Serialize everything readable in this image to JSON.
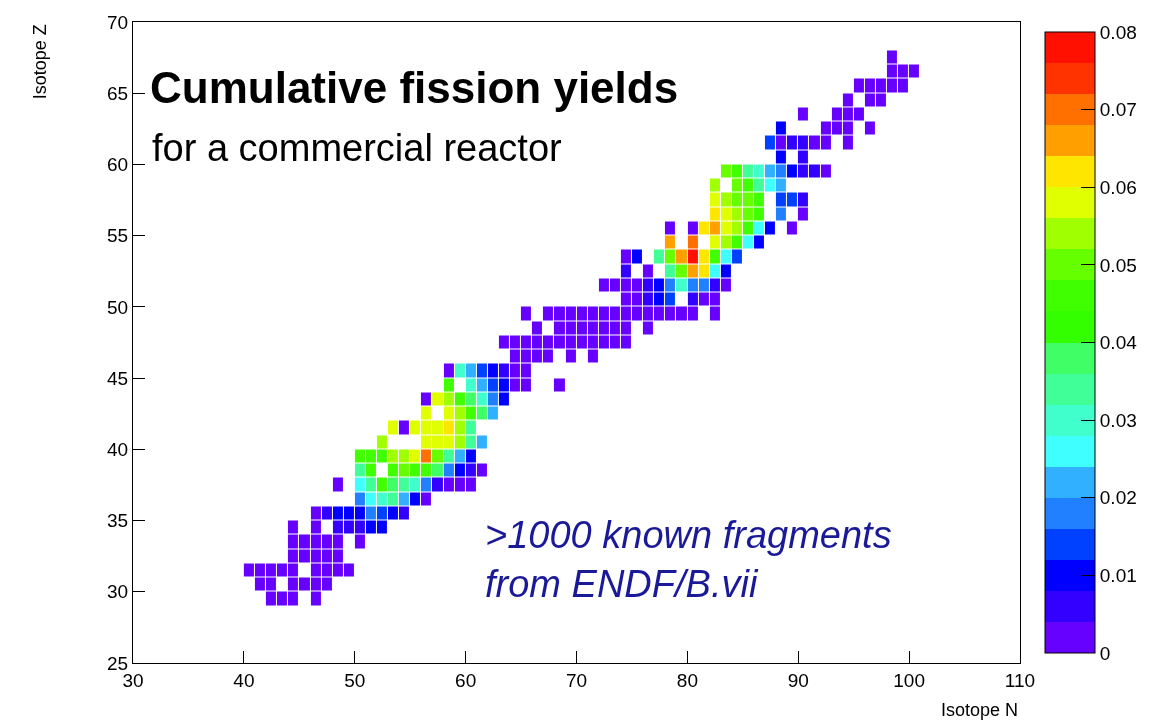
{
  "chart_data": {
    "type": "heatmap",
    "title": "Cumulative fission yields",
    "subtitle": "for a commercial reactor",
    "xlabel": "Isotope N",
    "ylabel": "Isotope Z",
    "annotations": [
      ">1000 known fragments\nfrom ENDF/B.vii"
    ],
    "xlim": [
      30,
      110
    ],
    "xticks": [
      30,
      40,
      50,
      60,
      70,
      80,
      90,
      100,
      110
    ],
    "ylim": [
      25,
      70
    ],
    "yticks": [
      25,
      30,
      35,
      40,
      45,
      50,
      55,
      60,
      65,
      70
    ],
    "clim": [
      0,
      0.08
    ],
    "cticks": [
      0,
      0.01,
      0.02,
      0.03,
      0.04,
      0.05,
      0.06,
      0.07,
      0.08
    ],
    "colors": [
      "#6600ff",
      "#3300ff",
      "#0000ff",
      "#0040ff",
      "#2080ff",
      "#30b0ff",
      "#40ffff",
      "#40ffcc",
      "#40ff99",
      "#40ff66",
      "#33ff00",
      "#40ff00",
      "#66ff00",
      "#a0ff00",
      "#e0ff00",
      "#ffe600",
      "#ffa000",
      "#ff7000",
      "#ff3300",
      "#ff1000"
    ],
    "grid": false,
    "x": [
      40.5,
      41.5,
      42.5,
      43.5,
      44.5,
      45.5,
      46.5,
      47.5,
      48.5,
      49.5,
      50.5,
      51.5,
      52.5,
      53.5,
      54.5,
      55.5,
      56.5,
      57.5,
      58.5,
      59.5,
      60.5,
      61.5,
      62.5,
      63.5,
      64.5,
      65.5,
      66.5,
      67.5,
      68.5,
      69.5,
      70.5,
      71.5,
      72.5,
      73.5,
      74.5,
      75.5,
      76.5,
      77.5,
      78.5,
      79.5,
      80.5,
      81.5,
      82.5,
      83.5,
      84.5,
      85.5,
      86.5,
      87.5,
      88.5,
      89.5,
      90.5,
      91.5,
      92.5,
      93.5,
      94.5,
      95.5,
      96.5,
      97.5,
      98.5,
      99.5,
      100.5
    ],
    "y": [
      67.5,
      66.5,
      65.5,
      64.5,
      63.5,
      62.5,
      61.5,
      60.5,
      59.5,
      58.5,
      57.5,
      56.5,
      55.5,
      54.5,
      53.5,
      52.5,
      51.5,
      50.5,
      49.5,
      48.5,
      47.5,
      46.5,
      45.5,
      44.5,
      43.5,
      42.5,
      41.5,
      40.5,
      39.5,
      38.5,
      37.5,
      36.5,
      35.5,
      34.5,
      33.5,
      32.5,
      31.5,
      30.5,
      29.5
    ],
    "cells": [
      [
        null,
        null,
        null,
        null,
        null,
        null,
        null,
        null,
        null,
        null,
        null,
        null,
        null,
        null,
        null,
        null,
        null,
        null,
        null,
        null,
        null,
        null,
        null,
        null,
        null,
        null,
        null,
        null,
        null,
        null,
        null,
        null,
        null,
        null,
        null,
        null,
        null,
        null,
        null,
        null,
        null,
        null,
        null,
        null,
        null,
        null,
        null,
        null,
        null,
        null,
        null,
        null,
        null,
        null,
        null,
        null,
        null,
        null,
        0.002,
        null,
        null
      ],
      [
        null,
        null,
        null,
        null,
        null,
        null,
        null,
        null,
        null,
        null,
        null,
        null,
        null,
        null,
        null,
        null,
        null,
        null,
        null,
        null,
        null,
        null,
        null,
        null,
        null,
        null,
        null,
        null,
        null,
        null,
        null,
        null,
        null,
        null,
        null,
        null,
        null,
        null,
        null,
        null,
        null,
        null,
        null,
        null,
        null,
        null,
        null,
        null,
        null,
        null,
        null,
        null,
        null,
        null,
        null,
        null,
        null,
        null,
        0.002,
        0.002,
        0.002
      ],
      [
        null,
        null,
        null,
        null,
        null,
        null,
        null,
        null,
        null,
        null,
        null,
        null,
        null,
        null,
        null,
        null,
        null,
        null,
        null,
        null,
        null,
        null,
        null,
        null,
        null,
        null,
        null,
        null,
        null,
        null,
        null,
        null,
        null,
        null,
        null,
        null,
        null,
        null,
        null,
        null,
        null,
        null,
        null,
        null,
        null,
        null,
        null,
        null,
        null,
        null,
        null,
        null,
        null,
        null,
        null,
        0.002,
        0.002,
        0.002,
        0.002,
        0.002,
        null
      ],
      [
        null,
        null,
        null,
        null,
        null,
        null,
        null,
        null,
        null,
        null,
        null,
        null,
        null,
        null,
        null,
        null,
        null,
        null,
        null,
        null,
        null,
        null,
        null,
        null,
        null,
        null,
        null,
        null,
        null,
        null,
        null,
        null,
        null,
        null,
        null,
        null,
        null,
        null,
        null,
        null,
        null,
        null,
        null,
        null,
        null,
        null,
        null,
        null,
        null,
        null,
        null,
        null,
        null,
        null,
        0.002,
        null,
        0.002,
        0.002,
        null,
        null,
        null
      ],
      [
        null,
        null,
        null,
        null,
        null,
        null,
        null,
        null,
        null,
        null,
        null,
        null,
        null,
        null,
        null,
        null,
        null,
        null,
        null,
        null,
        null,
        null,
        null,
        null,
        null,
        null,
        null,
        null,
        null,
        null,
        null,
        null,
        null,
        null,
        null,
        null,
        null,
        null,
        null,
        null,
        null,
        null,
        null,
        null,
        null,
        null,
        null,
        null,
        null,
        null,
        0.002,
        null,
        null,
        0.002,
        0.002,
        0.002,
        null,
        null,
        null,
        null,
        null
      ],
      [
        null,
        null,
        null,
        null,
        null,
        null,
        null,
        null,
        null,
        null,
        null,
        null,
        null,
        null,
        null,
        null,
        null,
        null,
        null,
        null,
        null,
        null,
        null,
        null,
        null,
        null,
        null,
        null,
        null,
        null,
        null,
        null,
        null,
        null,
        null,
        null,
        null,
        null,
        null,
        null,
        null,
        null,
        null,
        null,
        null,
        null,
        null,
        null,
        0.01,
        null,
        null,
        null,
        0.002,
        0.002,
        0.002,
        null,
        0.002,
        null,
        null,
        null,
        null
      ],
      [
        null,
        null,
        null,
        null,
        null,
        null,
        null,
        null,
        null,
        null,
        null,
        null,
        null,
        null,
        null,
        null,
        null,
        null,
        null,
        null,
        null,
        null,
        null,
        null,
        null,
        null,
        null,
        null,
        null,
        null,
        null,
        null,
        null,
        null,
        null,
        null,
        null,
        null,
        null,
        null,
        null,
        null,
        null,
        null,
        null,
        null,
        null,
        0.014,
        0.002,
        0.006,
        0.006,
        0.002,
        0.002,
        null,
        0.002,
        null,
        null,
        null,
        null,
        null,
        null
      ],
      [
        null,
        null,
        null,
        null,
        null,
        null,
        null,
        null,
        null,
        null,
        null,
        null,
        null,
        null,
        null,
        null,
        null,
        null,
        null,
        null,
        null,
        null,
        null,
        null,
        null,
        null,
        null,
        null,
        null,
        null,
        null,
        null,
        null,
        null,
        null,
        null,
        null,
        null,
        null,
        null,
        null,
        null,
        null,
        null,
        null,
        null,
        null,
        null,
        0.01,
        null,
        0.006,
        null,
        null,
        null,
        null,
        null,
        null,
        null,
        null,
        null,
        null
      ],
      [
        null,
        null,
        null,
        null,
        null,
        null,
        null,
        null,
        null,
        null,
        null,
        null,
        null,
        null,
        null,
        null,
        null,
        null,
        null,
        null,
        null,
        null,
        null,
        null,
        null,
        null,
        null,
        null,
        null,
        null,
        null,
        null,
        null,
        null,
        null,
        null,
        null,
        null,
        null,
        null,
        null,
        null,
        null,
        0.05,
        0.046,
        0.034,
        0.03,
        0.022,
        0.018,
        0.01,
        0.006,
        0.006,
        0.002,
        null,
        null,
        null,
        null,
        null,
        null,
        null,
        null
      ],
      [
        null,
        null,
        null,
        null,
        null,
        null,
        null,
        null,
        null,
        null,
        null,
        null,
        null,
        null,
        null,
        null,
        null,
        null,
        null,
        null,
        null,
        null,
        null,
        null,
        null,
        null,
        null,
        null,
        null,
        null,
        null,
        null,
        null,
        null,
        null,
        null,
        null,
        null,
        null,
        null,
        null,
        null,
        0.054,
        null,
        0.05,
        0.046,
        0.034,
        0.026,
        0.022,
        null,
        null,
        null,
        null,
        null,
        null,
        null,
        null,
        null,
        null,
        null,
        null
      ],
      [
        null,
        null,
        null,
        null,
        null,
        null,
        null,
        null,
        null,
        null,
        null,
        null,
        null,
        null,
        null,
        null,
        null,
        null,
        null,
        null,
        null,
        null,
        null,
        null,
        null,
        null,
        null,
        null,
        null,
        null,
        null,
        null,
        null,
        null,
        null,
        null,
        null,
        null,
        null,
        null,
        null,
        null,
        0.058,
        0.054,
        0.05,
        0.05,
        0.046,
        null,
        0.014,
        0.014,
        0.006,
        null,
        null,
        null,
        null,
        null,
        null,
        null,
        null,
        null,
        null
      ],
      [
        null,
        null,
        null,
        null,
        null,
        null,
        null,
        null,
        null,
        null,
        null,
        null,
        null,
        null,
        null,
        null,
        null,
        null,
        null,
        null,
        null,
        null,
        null,
        null,
        null,
        null,
        null,
        null,
        null,
        null,
        null,
        null,
        null,
        null,
        null,
        null,
        null,
        null,
        null,
        null,
        null,
        null,
        0.062,
        0.058,
        0.054,
        0.05,
        0.046,
        null,
        0.018,
        null,
        0.002,
        null,
        null,
        null,
        null,
        null,
        null,
        null,
        null,
        null,
        null
      ],
      [
        null,
        null,
        null,
        null,
        null,
        null,
        null,
        null,
        null,
        null,
        null,
        null,
        null,
        null,
        null,
        null,
        null,
        null,
        null,
        null,
        null,
        null,
        null,
        null,
        null,
        null,
        null,
        null,
        null,
        null,
        null,
        null,
        null,
        null,
        null,
        null,
        null,
        null,
        0.002,
        null,
        0.002,
        0.062,
        0.066,
        0.058,
        0.054,
        0.046,
        0.026,
        0.01,
        null,
        0.002,
        null,
        null,
        null,
        null,
        null,
        null,
        null,
        null,
        null,
        null,
        null
      ],
      [
        null,
        null,
        null,
        null,
        null,
        null,
        null,
        null,
        null,
        null,
        null,
        null,
        null,
        null,
        null,
        null,
        null,
        null,
        null,
        null,
        null,
        null,
        null,
        null,
        null,
        null,
        null,
        null,
        null,
        null,
        null,
        null,
        null,
        null,
        null,
        null,
        null,
        null,
        0.066,
        null,
        0.07,
        null,
        0.058,
        0.054,
        0.046,
        0.026,
        0.01,
        null,
        null,
        null,
        null,
        null,
        null,
        null,
        null,
        null,
        null,
        null,
        null,
        null,
        null
      ],
      [
        null,
        null,
        null,
        null,
        null,
        null,
        null,
        null,
        null,
        null,
        null,
        null,
        null,
        null,
        null,
        null,
        null,
        null,
        null,
        null,
        null,
        null,
        null,
        null,
        null,
        null,
        null,
        null,
        null,
        null,
        null,
        null,
        null,
        null,
        0.002,
        0.01,
        null,
        0.034,
        0.05,
        0.066,
        0.078,
        0.062,
        0.046,
        0.026,
        0.014,
        null,
        null,
        null,
        null,
        null,
        null,
        null,
        null,
        null,
        null,
        null,
        null,
        null,
        null,
        null,
        null
      ],
      [
        null,
        null,
        null,
        null,
        null,
        null,
        null,
        null,
        null,
        null,
        null,
        null,
        null,
        null,
        null,
        null,
        null,
        null,
        null,
        null,
        null,
        null,
        null,
        null,
        null,
        null,
        null,
        null,
        null,
        null,
        null,
        null,
        null,
        null,
        0.006,
        null,
        0.002,
        null,
        0.034,
        0.05,
        0.066,
        0.062,
        0.026,
        0.01,
        null,
        null,
        null,
        null,
        null,
        null,
        null,
        null,
        null,
        null,
        null,
        null,
        null,
        null,
        null,
        null,
        null
      ],
      [
        null,
        null,
        null,
        null,
        null,
        null,
        null,
        null,
        null,
        null,
        null,
        null,
        null,
        null,
        null,
        null,
        null,
        null,
        null,
        null,
        null,
        null,
        null,
        null,
        null,
        null,
        null,
        null,
        null,
        null,
        null,
        null,
        0.002,
        0.002,
        0.002,
        0.002,
        0.006,
        0.01,
        0.018,
        0.03,
        0.018,
        0.018,
        0.006,
        0.002,
        null,
        null,
        null,
        null,
        null,
        null,
        null,
        null,
        null,
        null,
        null,
        null,
        null,
        null,
        null,
        null,
        null
      ],
      [
        null,
        null,
        null,
        null,
        null,
        null,
        null,
        null,
        null,
        null,
        null,
        null,
        null,
        null,
        null,
        null,
        null,
        null,
        null,
        null,
        null,
        null,
        null,
        null,
        null,
        null,
        null,
        null,
        null,
        null,
        null,
        null,
        null,
        null,
        0.002,
        0.002,
        0.006,
        0.01,
        0.014,
        null,
        0.006,
        0.002,
        0.002,
        null,
        null,
        null,
        null,
        null,
        null,
        null,
        null,
        null,
        null,
        null,
        null,
        null,
        null,
        null,
        null,
        null,
        null
      ],
      [
        null,
        null,
        null,
        null,
        null,
        null,
        null,
        null,
        null,
        null,
        null,
        null,
        null,
        null,
        null,
        null,
        null,
        null,
        null,
        null,
        null,
        null,
        null,
        null,
        null,
        0.002,
        null,
        0.002,
        0.002,
        0.002,
        0.002,
        0.002,
        0.002,
        0.002,
        0.002,
        0.002,
        0.002,
        0.002,
        0.002,
        0.002,
        0.002,
        null,
        0.002,
        null,
        null,
        null,
        null,
        null,
        null,
        null,
        null,
        null,
        null,
        null,
        null,
        null,
        null,
        null,
        null,
        null,
        null
      ],
      [
        null,
        null,
        null,
        null,
        null,
        null,
        null,
        null,
        null,
        null,
        null,
        null,
        null,
        null,
        null,
        null,
        null,
        null,
        null,
        null,
        null,
        null,
        null,
        null,
        null,
        null,
        0.002,
        null,
        0.002,
        0.002,
        0.002,
        0.002,
        0.002,
        0.002,
        0.002,
        null,
        0.002,
        null,
        null,
        null,
        null,
        null,
        null,
        null,
        null,
        null,
        null,
        null,
        null,
        null,
        null,
        null,
        null,
        null,
        null,
        null,
        null,
        null,
        null,
        null,
        null
      ],
      [
        null,
        null,
        null,
        null,
        null,
        null,
        null,
        null,
        null,
        null,
        null,
        null,
        null,
        null,
        null,
        null,
        null,
        null,
        null,
        null,
        null,
        null,
        null,
        0.002,
        0.002,
        0.002,
        0.002,
        0.002,
        0.002,
        0.002,
        0.002,
        0.002,
        0.002,
        0.002,
        0.002,
        null,
        null,
        null,
        null,
        null,
        null,
        null,
        null,
        null,
        null,
        null,
        null,
        null,
        null,
        null,
        null,
        null,
        null,
        null,
        null,
        null,
        null,
        null,
        null,
        null,
        null
      ],
      [
        null,
        null,
        null,
        null,
        null,
        null,
        null,
        null,
        null,
        null,
        null,
        null,
        null,
        null,
        null,
        null,
        null,
        null,
        null,
        null,
        null,
        null,
        null,
        null,
        0.002,
        0.002,
        0.002,
        0.002,
        null,
        0.002,
        null,
        0.002,
        null,
        null,
        null,
        null,
        null,
        null,
        null,
        null,
        null,
        null,
        null,
        null,
        null,
        null,
        null,
        null,
        null,
        null,
        null,
        null,
        null,
        null,
        null,
        null,
        null,
        null,
        null,
        null,
        null
      ],
      [
        null,
        null,
        null,
        null,
        null,
        null,
        null,
        null,
        null,
        null,
        null,
        null,
        null,
        null,
        null,
        null,
        null,
        null,
        0.002,
        0.03,
        0.022,
        0.014,
        0.01,
        0.006,
        0.002,
        0.002,
        null,
        null,
        null,
        null,
        null,
        null,
        null,
        null,
        null,
        null,
        null,
        null,
        null,
        null,
        null,
        null,
        null,
        null,
        null,
        null,
        null,
        null,
        null,
        null,
        null,
        null,
        null,
        null,
        null,
        null,
        null,
        null,
        null,
        null,
        null
      ],
      [
        null,
        null,
        null,
        null,
        null,
        null,
        null,
        null,
        null,
        null,
        null,
        null,
        null,
        null,
        null,
        null,
        null,
        null,
        0.046,
        null,
        0.03,
        0.022,
        0.014,
        0.01,
        0.002,
        0.002,
        null,
        null,
        0.002,
        null,
        null,
        null,
        null,
        null,
        null,
        null,
        null,
        null,
        null,
        null,
        null,
        null,
        null,
        null,
        null,
        null,
        null,
        null,
        null,
        null,
        null,
        null,
        null,
        null,
        null,
        null,
        null,
        null,
        null,
        null,
        null
      ],
      [
        null,
        null,
        null,
        null,
        null,
        null,
        null,
        null,
        null,
        null,
        null,
        null,
        null,
        null,
        null,
        null,
        0.002,
        0.058,
        0.054,
        0.046,
        0.038,
        0.03,
        0.018,
        0.01,
        null,
        null,
        null,
        null,
        null,
        null,
        null,
        null,
        null,
        null,
        null,
        null,
        null,
        null,
        null,
        null,
        null,
        null,
        null,
        null,
        null,
        null,
        null,
        null,
        null,
        null,
        null,
        null,
        null,
        null,
        null,
        null,
        null,
        null,
        null,
        null,
        null
      ],
      [
        null,
        null,
        null,
        null,
        null,
        null,
        null,
        null,
        null,
        null,
        null,
        null,
        null,
        null,
        null,
        null,
        0.058,
        null,
        0.058,
        0.054,
        0.046,
        0.038,
        0.022,
        null,
        null,
        null,
        null,
        null,
        null,
        null,
        null,
        null,
        null,
        null,
        null,
        null,
        null,
        null,
        null,
        null,
        null,
        null,
        null,
        null,
        null,
        null,
        null,
        null,
        null,
        null,
        null,
        null,
        null,
        null,
        null,
        null,
        null,
        null,
        null,
        null,
        null
      ],
      [
        null,
        null,
        null,
        null,
        null,
        null,
        null,
        null,
        null,
        null,
        null,
        null,
        null,
        0.058,
        0.002,
        0.058,
        0.058,
        0.058,
        0.062,
        0.054,
        0.034,
        null,
        null,
        null,
        null,
        null,
        null,
        null,
        null,
        null,
        null,
        null,
        null,
        null,
        null,
        null,
        null,
        null,
        null,
        null,
        null,
        null,
        null,
        null,
        null,
        null,
        null,
        null,
        null,
        null,
        null,
        null,
        null,
        null,
        null,
        null,
        null,
        null,
        null,
        null,
        null
      ],
      [
        null,
        null,
        null,
        null,
        null,
        null,
        null,
        null,
        null,
        null,
        null,
        null,
        0.054,
        null,
        null,
        null,
        0.058,
        0.058,
        0.058,
        0.054,
        0.034,
        0.022,
        null,
        null,
        null,
        null,
        null,
        null,
        null,
        null,
        null,
        null,
        null,
        null,
        null,
        null,
        null,
        null,
        null,
        null,
        null,
        null,
        null,
        null,
        null,
        null,
        null,
        null,
        null,
        null,
        null,
        null,
        null,
        null,
        null,
        null,
        null,
        null,
        null,
        null,
        null
      ],
      [
        null,
        null,
        null,
        null,
        null,
        null,
        null,
        null,
        null,
        null,
        0.046,
        0.046,
        0.046,
        0.054,
        0.054,
        0.058,
        0.07,
        0.05,
        0.034,
        0.022,
        0.01,
        null,
        null,
        null,
        null,
        null,
        null,
        null,
        null,
        null,
        null,
        null,
        null,
        null,
        null,
        null,
        null,
        null,
        null,
        null,
        null,
        null,
        null,
        null,
        null,
        null,
        null,
        null,
        null,
        null,
        null,
        null,
        null,
        null,
        null,
        null,
        null,
        null,
        null,
        null,
        null
      ],
      [
        null,
        null,
        null,
        null,
        null,
        null,
        null,
        null,
        null,
        null,
        0.034,
        0.046,
        null,
        0.046,
        0.05,
        0.046,
        0.046,
        0.038,
        0.018,
        0.01,
        0.006,
        0.002,
        null,
        null,
        null,
        null,
        null,
        null,
        null,
        null,
        null,
        null,
        null,
        null,
        null,
        null,
        null,
        null,
        null,
        null,
        null,
        null,
        null,
        null,
        null,
        null,
        null,
        null,
        null,
        null,
        null,
        null,
        null,
        null,
        null,
        null,
        null,
        null,
        null,
        null,
        null
      ],
      [
        null,
        null,
        null,
        null,
        null,
        null,
        null,
        null,
        0.002,
        null,
        0.026,
        0.034,
        0.046,
        0.038,
        0.034,
        0.03,
        0.018,
        0.006,
        0.002,
        0.002,
        0.002,
        null,
        null,
        null,
        null,
        null,
        null,
        null,
        null,
        null,
        null,
        null,
        null,
        null,
        null,
        null,
        null,
        null,
        null,
        null,
        null,
        null,
        null,
        null,
        null,
        null,
        null,
        null,
        null,
        null,
        null,
        null,
        null,
        null,
        null,
        null,
        null,
        null,
        null,
        null,
        null
      ],
      [
        null,
        null,
        null,
        null,
        null,
        null,
        null,
        null,
        null,
        null,
        0.018,
        0.026,
        0.03,
        0.034,
        0.022,
        0.01,
        0.002,
        null,
        null,
        null,
        null,
        null,
        null,
        null,
        null,
        null,
        null,
        null,
        null,
        null,
        null,
        null,
        null,
        null,
        null,
        null,
        null,
        null,
        null,
        null,
        null,
        null,
        null,
        null,
        null,
        null,
        null,
        null,
        null,
        null,
        null,
        null,
        null,
        null,
        null,
        null,
        null,
        null,
        null,
        null,
        null
      ],
      [
        null,
        null,
        null,
        null,
        null,
        null,
        0.002,
        0.006,
        0.01,
        0.01,
        0.01,
        0.018,
        0.014,
        0.01,
        0.006,
        null,
        null,
        null,
        null,
        null,
        null,
        null,
        null,
        null,
        null,
        null,
        null,
        null,
        null,
        null,
        null,
        null,
        null,
        null,
        null,
        null,
        null,
        null,
        null,
        null,
        null,
        null,
        null,
        null,
        null,
        null,
        null,
        null,
        null,
        null,
        null,
        null,
        null,
        null,
        null,
        null,
        null,
        null,
        null,
        null,
        null
      ],
      [
        null,
        null,
        null,
        null,
        0.002,
        null,
        0.002,
        null,
        0.006,
        0.006,
        0.006,
        0.01,
        0.01,
        null,
        null,
        null,
        null,
        null,
        null,
        null,
        null,
        null,
        null,
        null,
        null,
        null,
        null,
        null,
        null,
        null,
        null,
        null,
        null,
        null,
        null,
        null,
        null,
        null,
        null,
        null,
        null,
        null,
        null,
        null,
        null,
        null,
        null,
        null,
        null,
        null,
        null,
        null,
        null,
        null,
        null,
        null,
        null,
        null,
        null,
        null,
        null
      ],
      [
        null,
        null,
        null,
        null,
        0.002,
        0.002,
        0.002,
        0.002,
        0.002,
        null,
        0.002,
        null,
        null,
        null,
        null,
        null,
        null,
        null,
        null,
        null,
        null,
        null,
        null,
        null,
        null,
        null,
        null,
        null,
        null,
        null,
        null,
        null,
        null,
        null,
        null,
        null,
        null,
        null,
        null,
        null,
        null,
        null,
        null,
        null,
        null,
        null,
        null,
        null,
        null,
        null,
        null,
        null,
        null,
        null,
        null,
        null,
        null,
        null,
        null,
        null,
        null
      ],
      [
        null,
        null,
        null,
        null,
        0.002,
        0.002,
        0.002,
        0.002,
        0.002,
        null,
        null,
        null,
        null,
        null,
        null,
        null,
        null,
        null,
        null,
        null,
        null,
        null,
        null,
        null,
        null,
        null,
        null,
        null,
        null,
        null,
        null,
        null,
        null,
        null,
        null,
        null,
        null,
        null,
        null,
        null,
        null,
        null,
        null,
        null,
        null,
        null,
        null,
        null,
        null,
        null,
        null,
        null,
        null,
        null,
        null,
        null,
        null,
        null,
        null,
        null,
        null
      ],
      [
        0.002,
        0.002,
        0.002,
        0.002,
        0.002,
        null,
        0.002,
        0.002,
        0.002,
        0.002,
        null,
        null,
        null,
        null,
        null,
        null,
        null,
        null,
        null,
        null,
        null,
        null,
        null,
        null,
        null,
        null,
        null,
        null,
        null,
        null,
        null,
        null,
        null,
        null,
        null,
        null,
        null,
        null,
        null,
        null,
        null,
        null,
        null,
        null,
        null,
        null,
        null,
        null,
        null,
        null,
        null,
        null,
        null,
        null,
        null,
        null,
        null,
        null,
        null,
        null,
        null
      ],
      [
        null,
        0.002,
        0.002,
        null,
        0.002,
        0.002,
        0.002,
        0.002,
        null,
        null,
        null,
        null,
        null,
        null,
        null,
        null,
        null,
        null,
        null,
        null,
        null,
        null,
        null,
        null,
        null,
        null,
        null,
        null,
        null,
        null,
        null,
        null,
        null,
        null,
        null,
        null,
        null,
        null,
        null,
        null,
        null,
        null,
        null,
        null,
        null,
        null,
        null,
        null,
        null,
        null,
        null,
        null,
        null,
        null,
        null,
        null,
        null,
        null,
        null,
        null,
        null
      ],
      [
        null,
        null,
        0.002,
        0.002,
        0.002,
        null,
        0.002,
        null,
        null,
        null,
        null,
        null,
        null,
        null,
        null,
        null,
        null,
        null,
        null,
        null,
        null,
        null,
        null,
        null,
        null,
        null,
        null,
        null,
        null,
        null,
        null,
        null,
        null,
        null,
        null,
        null,
        null,
        null,
        null,
        null,
        null,
        null,
        null,
        null,
        null,
        null,
        null,
        null,
        null,
        null,
        null,
        null,
        null,
        null,
        null,
        null,
        null,
        null,
        null,
        null,
        null
      ]
    ]
  }
}
